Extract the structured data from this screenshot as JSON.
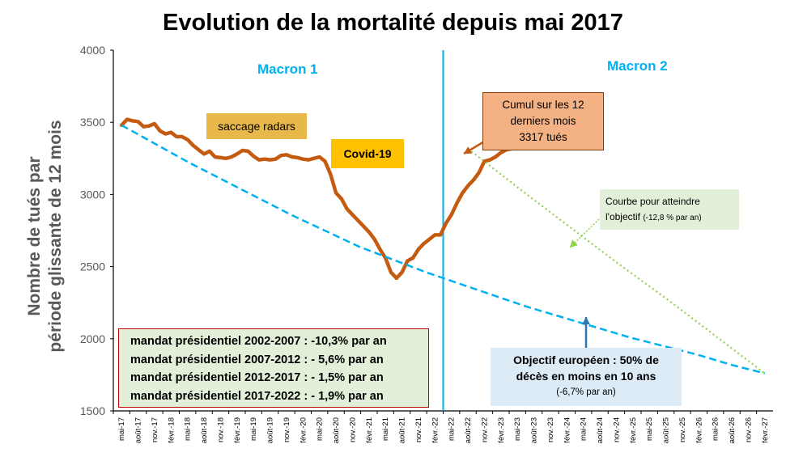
{
  "chart_data": {
    "type": "line",
    "title": "Evolution de la mortalité depuis mai 2017",
    "ylabel": "Nombre de tués par\npériode  glissante de 12 mois",
    "xlabel": "",
    "ylim": [
      1500,
      4000
    ],
    "y_ticks": [
      "1500",
      "2000",
      "2500",
      "3000",
      "3500",
      "4000"
    ],
    "x_tick_labels": [
      "mai-17",
      "août-17",
      "nov.-17",
      "févr.-18",
      "mai-18",
      "août-18",
      "nov.-18",
      "févr.-19",
      "mai-19",
      "août-19",
      "nov.-19",
      "févr.-20",
      "mai-20",
      "août-20",
      "nov.-20",
      "févr.-21",
      "mai-21",
      "août-21",
      "nov.-21",
      "févr.-22",
      "mai-22",
      "août-22",
      "nov.-22",
      "févr.-23",
      "mai-23",
      "août-23",
      "nov.-23",
      "févr.-24",
      "mai-24",
      "août-24",
      "nov.-24",
      "févr.-25",
      "mai-25",
      "août-25",
      "nov.-25",
      "févr.-26",
      "mai-26",
      "août-26",
      "nov.-26",
      "févr.-27"
    ],
    "grid": false,
    "series": [
      {
        "values": [
          3480,
          3520,
          3510,
          3505,
          3470,
          3475,
          3490,
          3440,
          3420,
          3430,
          3400,
          3400,
          3380,
          3340,
          3310,
          3280,
          3300,
          3260,
          3255,
          3250,
          3260,
          3280,
          3305,
          3300,
          3265,
          3240,
          3245,
          3240,
          3245,
          3270,
          3275,
          3260,
          3255,
          3245,
          3240,
          3250,
          3260,
          3230,
          3140,
          3010,
          2970,
          2900,
          2860,
          2820,
          2780,
          2740,
          2690,
          2620,
          2560,
          2460,
          2420,
          2460,
          2540,
          2560,
          2620,
          2660,
          2690,
          2720,
          2720,
          2800,
          2860,
          2940,
          3010,
          3060,
          3100,
          3150,
          3230,
          3240,
          3260,
          3290,
          3310,
          3317
        ],
        "color": "#c55a11"
      },
      {
        "values": [
          3480,
          3350,
          3220,
          3100,
          2980,
          2860,
          2750,
          2640,
          2550,
          2460,
          2380,
          2300,
          2220,
          2150,
          2080,
          2010,
          1950,
          1890,
          1820,
          1760
        ],
        "color": "#00b0f0"
      },
      {
        "values": [
          3317,
          3050,
          2790,
          2530,
          2280,
          2020,
          1760
        ],
        "color": "#92d050"
      }
    ]
  },
  "annotations": {
    "macron1": "Macron 1",
    "macron2": "Macron 2",
    "radars": "saccage radars",
    "covid": "Covid-19",
    "cumul": [
      "Cumul sur les 12",
      "derniers mois",
      "3317 tués"
    ],
    "objective_line1": "Courbe  pour atteindre",
    "objective_line2": "l'objectif",
    "objective_small": "(-12,8 % par an)",
    "euro_line1": "Objectif européen : 50% de",
    "euro_line2": "décès en moins en 10 ans",
    "euro_small": "(-6,7% par an)",
    "mandates": [
      "mandat présidentiel 2002-2007 : -10,3% par an",
      "mandat présidentiel 2007-2012 : - 5,6% par an",
      "mandat présidentiel 2012-2017 : - 1,5% par an",
      "mandat présidentiel 2017-2022 : - 1,9% par an"
    ]
  },
  "colors": {
    "mortality": "#c55a11",
    "euro_target": "#00b0f0",
    "objective_curve": "#92d050",
    "divider": "#00b0f0",
    "axis": "#000000"
  }
}
